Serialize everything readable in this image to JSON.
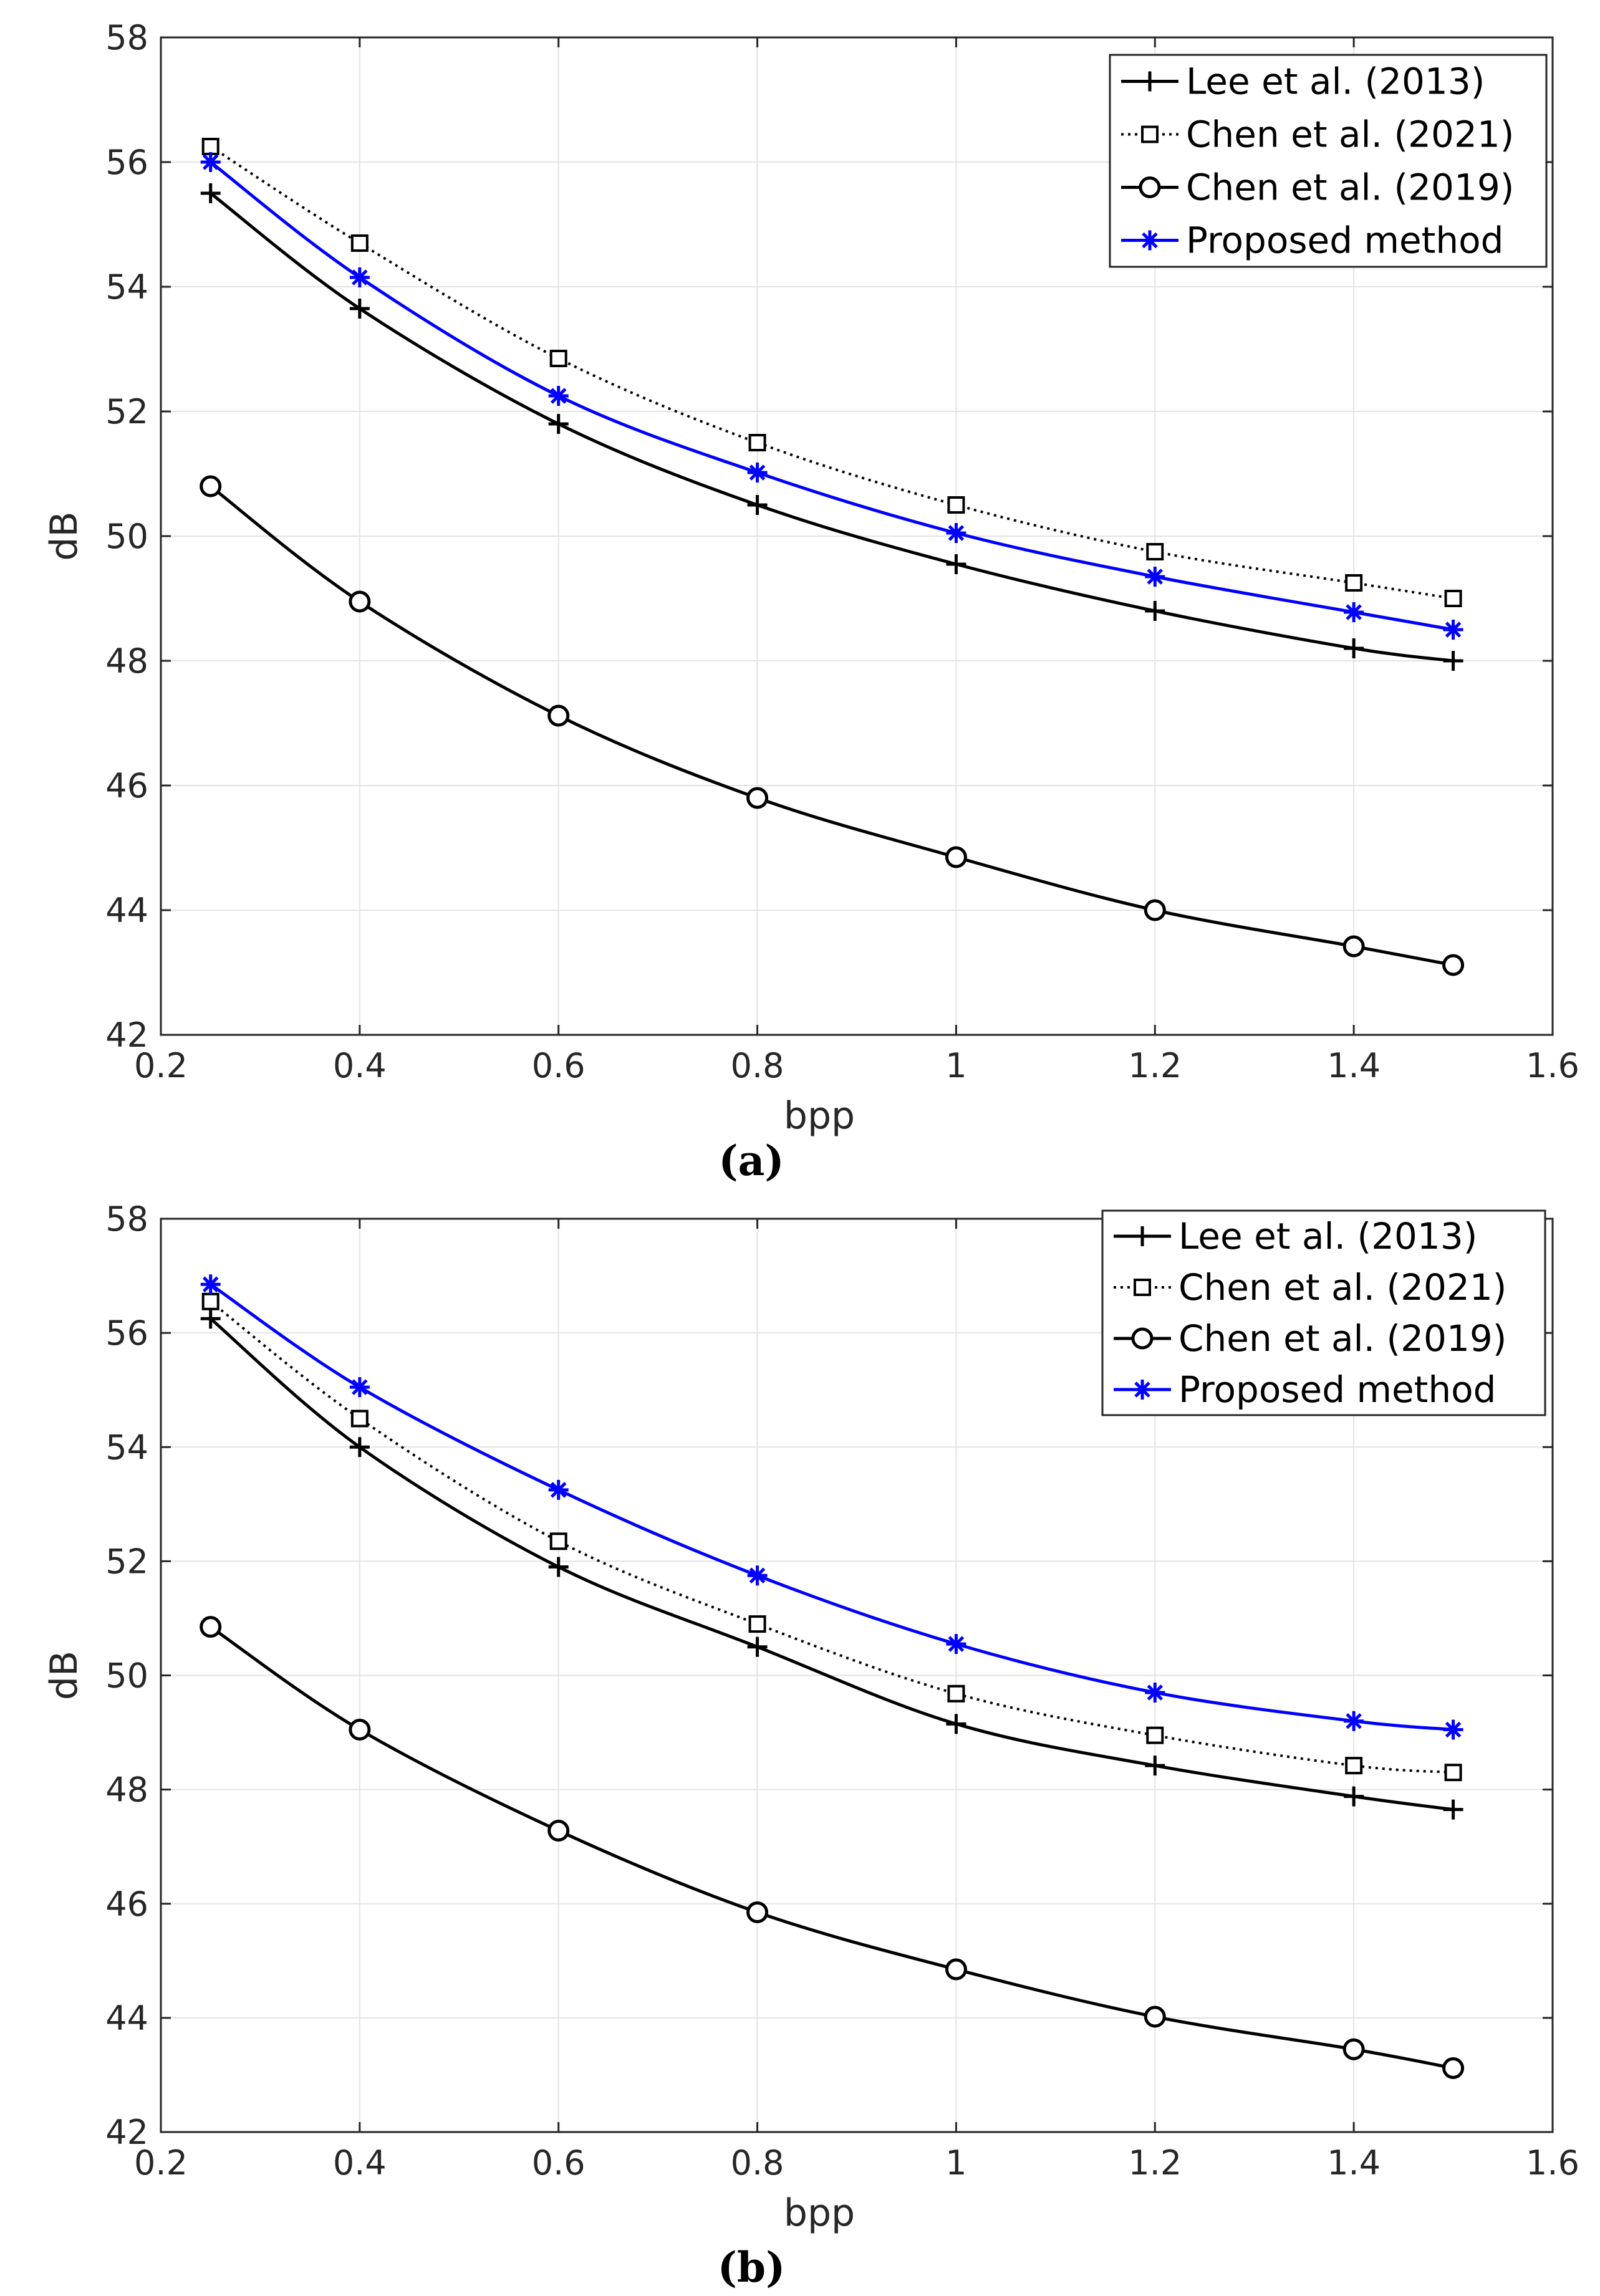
{
  "chart_data": [
    {
      "type": "line",
      "caption": "(a)",
      "xlabel": "bpp",
      "ylabel": "dB",
      "xlim": [
        0.2,
        1.6
      ],
      "ylim": [
        42,
        58
      ],
      "xticks": [
        "0.2",
        "0.4",
        "0.6",
        "0.8",
        "1",
        "1.2",
        "1.4",
        "1.6"
      ],
      "yticks": [
        "42",
        "44",
        "46",
        "48",
        "50",
        "52",
        "54",
        "56",
        "58"
      ],
      "grid": true,
      "legend_position": "top-right",
      "x": [
        0.25,
        0.4,
        0.6,
        0.8,
        1.0,
        1.2,
        1.4,
        1.5
      ],
      "series": [
        {
          "name": "Lee et al. (2013)",
          "marker": "plus",
          "style": "solid",
          "color": "#000000",
          "values": [
            55.5,
            53.65,
            51.8,
            50.5,
            49.55,
            48.8,
            48.2,
            48.0
          ]
        },
        {
          "name": "Chen et al. (2021)",
          "marker": "square",
          "style": "dotted",
          "color": "#000000",
          "values": [
            56.25,
            54.7,
            52.85,
            51.5,
            50.5,
            49.75,
            49.25,
            49.0
          ]
        },
        {
          "name": "Chen et al. (2019)",
          "marker": "circle",
          "style": "solid",
          "color": "#000000",
          "values": [
            50.8,
            48.95,
            47.12,
            45.8,
            44.85,
            44.0,
            43.42,
            43.12
          ]
        },
        {
          "name": "Proposed method",
          "marker": "asterisk",
          "style": "solid",
          "color": "#0000ff",
          "values": [
            56.0,
            54.15,
            52.25,
            51.02,
            50.05,
            49.35,
            48.78,
            48.5
          ]
        }
      ]
    },
    {
      "type": "line",
      "caption": "(b)",
      "xlabel": "bpp",
      "ylabel": "dB",
      "xlim": [
        0.2,
        1.6
      ],
      "ylim": [
        42,
        58
      ],
      "xticks": [
        "0.2",
        "0.4",
        "0.6",
        "0.8",
        "1",
        "1.2",
        "1.4",
        "1.6"
      ],
      "yticks": [
        "42",
        "44",
        "46",
        "48",
        "50",
        "52",
        "54",
        "56",
        "58"
      ],
      "grid": true,
      "legend_position": "top-right",
      "x": [
        0.25,
        0.4,
        0.6,
        0.8,
        1.0,
        1.2,
        1.4,
        1.5
      ],
      "series": [
        {
          "name": "Lee et al. (2013)",
          "marker": "plus",
          "style": "solid",
          "color": "#000000",
          "values": [
            56.25,
            54.0,
            51.9,
            50.5,
            49.15,
            48.42,
            47.88,
            47.65
          ]
        },
        {
          "name": "Chen et al. (2021)",
          "marker": "square",
          "style": "dotted",
          "color": "#000000",
          "values": [
            56.55,
            54.5,
            52.35,
            50.9,
            49.68,
            48.95,
            48.42,
            48.3
          ]
        },
        {
          "name": "Chen et al. (2019)",
          "marker": "circle",
          "style": "solid",
          "color": "#000000",
          "values": [
            50.85,
            49.05,
            47.28,
            45.85,
            44.85,
            44.02,
            43.45,
            43.12
          ]
        },
        {
          "name": "Proposed method",
          "marker": "asterisk",
          "style": "solid",
          "color": "#0000ff",
          "values": [
            56.85,
            55.05,
            53.25,
            51.75,
            50.55,
            49.7,
            49.2,
            49.05
          ]
        }
      ]
    }
  ]
}
